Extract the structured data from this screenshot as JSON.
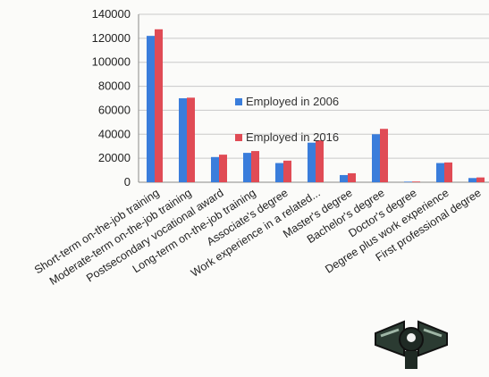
{
  "chart_data": {
    "type": "bar",
    "title": "",
    "xlabel": "",
    "ylabel": "",
    "ylim": [
      0,
      140000
    ],
    "yticks": [
      0,
      20000,
      40000,
      60000,
      80000,
      100000,
      120000,
      140000
    ],
    "ytick_labels": [
      "0",
      "20000",
      "40000",
      "60000",
      "80000",
      "100000",
      "120000",
      "140000"
    ],
    "grid": true,
    "legend_position": "center",
    "categories": [
      "Short-term on-the-job training",
      "Moderate-term on-the-job training",
      "Postsecondary vocational award",
      "Long-term on-the-job training",
      "Associate's degree",
      "Work experience in a related...",
      "Master's degree",
      "Bachelor's degree",
      "Doctor's degree",
      "Degree plus work experience",
      "First professional degree"
    ],
    "series": [
      {
        "name": "Employed in 2006",
        "color": "#3a7ddb",
        "values": [
          122000,
          70000,
          21000,
          24500,
          16000,
          33000,
          6000,
          40000,
          500,
          16000,
          3500
        ]
      },
      {
        "name": "Employed in 2016",
        "color": "#e04b55",
        "values": [
          127500,
          70500,
          23000,
          26000,
          18000,
          35000,
          7500,
          44500,
          600,
          16500,
          4000
        ]
      }
    ]
  },
  "decor": {
    "bowtie_icon": "bowtie-icon"
  }
}
